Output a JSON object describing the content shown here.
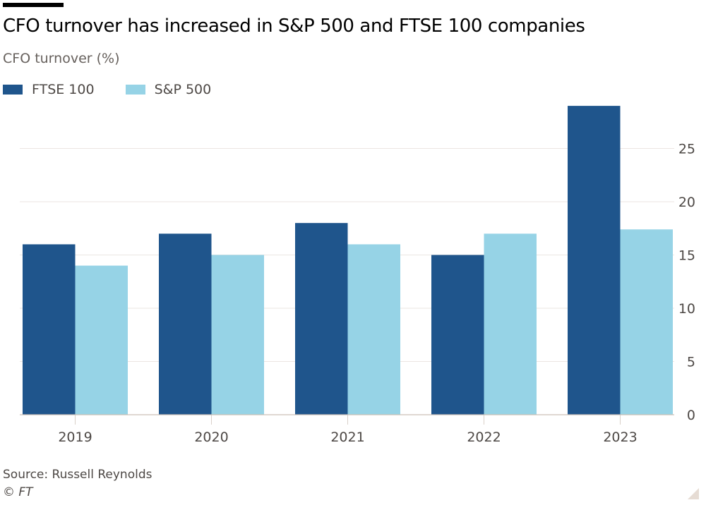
{
  "header": {
    "title": "CFO turnover has increased in S&P 500 and FTSE 100 companies",
    "subtitle": "CFO turnover (%)"
  },
  "legend": [
    {
      "label": "FTSE 100",
      "color": "#1f558c"
    },
    {
      "label": "S&P 500",
      "color": "#96d3e6"
    }
  ],
  "footer": {
    "source": "Source: Russell Reynolds",
    "copyright": "© FT"
  },
  "chart_data": {
    "type": "bar",
    "title": "CFO turnover has increased in S&P 500 and FTSE 100 companies",
    "subtitle": "CFO turnover (%)",
    "xlabel": "",
    "ylabel": "CFO turnover (%)",
    "categories": [
      "2019",
      "2020",
      "2021",
      "2022",
      "2023"
    ],
    "series": [
      {
        "name": "FTSE 100",
        "color": "#1f558c",
        "values": [
          16,
          17,
          18,
          15,
          29
        ]
      },
      {
        "name": "S&P 500",
        "color": "#96d3e6",
        "values": [
          14,
          15,
          16,
          17,
          17.4
        ]
      }
    ],
    "ylim": [
      0,
      29
    ],
    "yticks": [
      0,
      5,
      10,
      15,
      20,
      25
    ],
    "y_axis_side": "right",
    "grid": true,
    "legend_position": "top-left"
  }
}
